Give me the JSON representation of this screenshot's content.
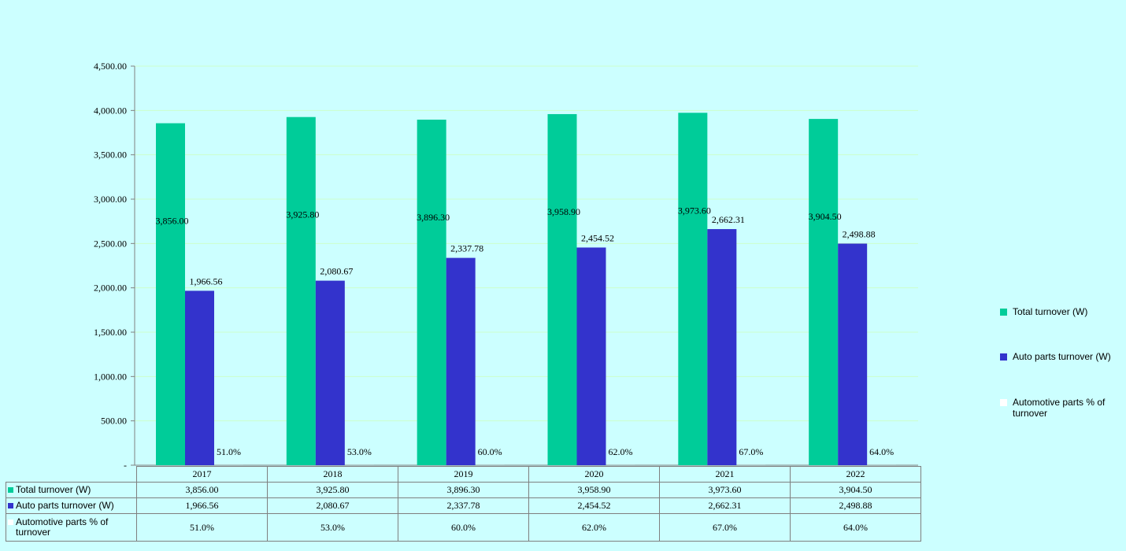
{
  "chart_data": {
    "type": "bar",
    "categories": [
      "2017",
      "2018",
      "2019",
      "2020",
      "2021",
      "2022"
    ],
    "series": [
      {
        "name": "Total turnover (W)",
        "color": "#00cc99",
        "values": [
          3856.0,
          3925.8,
          3896.3,
          3958.9,
          3973.6,
          3904.5
        ],
        "labels": [
          "3,856.00",
          "3,925.80",
          "3,896.30",
          "3,958.90",
          "3,973.60",
          "3,904.50"
        ]
      },
      {
        "name": "Auto parts turnover (W)",
        "color": "#3333cc",
        "values": [
          1966.56,
          2080.67,
          2337.78,
          2454.52,
          2662.31,
          2498.88
        ],
        "labels": [
          "1,966.56",
          "2,080.67",
          "2,337.78",
          "2,454.52",
          "2,662.31",
          "2,498.88"
        ]
      },
      {
        "name": "Automotive parts % of turnover",
        "color": "#ffffff",
        "values": [
          0.51,
          0.53,
          0.6,
          0.62,
          0.67,
          0.64
        ],
        "labels": [
          "51.0%",
          "53.0%",
          "60.0%",
          "62.0%",
          "67.0%",
          "64.0%"
        ]
      }
    ],
    "y_ticks": [
      "-",
      "500.00",
      "1,000.00",
      "1,500.00",
      "2,000.00",
      "2,500.00",
      "3,000.00",
      "3,500.00",
      "4,000.00",
      "4,500.00"
    ],
    "ylim": [
      0,
      4500
    ],
    "grid": true,
    "legend_position": "right",
    "data_table": true
  }
}
